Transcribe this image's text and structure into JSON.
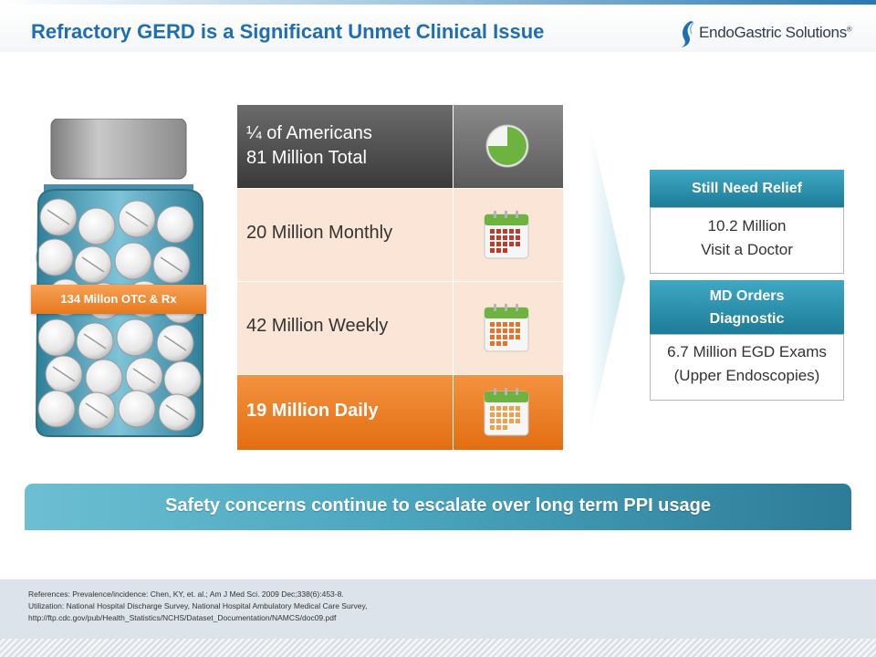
{
  "header": {
    "title": "Refractory GERD is a Significant Unmet Clinical Issue",
    "logo_text": "EndoGastric Solutions",
    "logo_mark": "®"
  },
  "jar": {
    "label": "134 Millon OTC & Rx"
  },
  "table": {
    "rows": [
      {
        "line1": "¼ of Americans",
        "line2": "81 Million Total",
        "icon": "pie-chart-icon"
      },
      {
        "text": "20 Million Monthly",
        "icon": "calendar-icon"
      },
      {
        "text": "42 Million Weekly",
        "icon": "calendar-icon"
      },
      {
        "text": "19 Million Daily",
        "icon": "calendar-icon"
      }
    ]
  },
  "boxes": [
    {
      "header": "Still Need Relief",
      "line1": "10.2 Million",
      "line2": "Visit a Doctor"
    },
    {
      "header_line1": "MD Orders",
      "header_line2": "Diagnostic",
      "line1": "6.7 Million EGD Exams",
      "line2": "(Upper Endoscopies)"
    }
  ],
  "banner": {
    "text": "Safety concerns continue to escalate over long term PPI usage"
  },
  "references": {
    "line1": "References: Prevalence/incidence: Chen, KY, et. al.; Am J Med Sci. 2009 Dec;338(6):453-8.",
    "line2": "Utilization: National Hospital Discharge Survey, National Hospital Ambulatory Medical Care Survey,",
    "line3": "http://ftp.cdc.gov/pub/Health_Statistics/NCHS/Dataset_Documentation/NAMCS/doc09.pdf"
  },
  "colors": {
    "title": "#1f6eb4",
    "orange": "#e77a1e",
    "teal": "#1d7c98",
    "peach": "#fbe5d6",
    "dark_gray": "#3a3a3a",
    "pie_green": "#6cb43f"
  }
}
